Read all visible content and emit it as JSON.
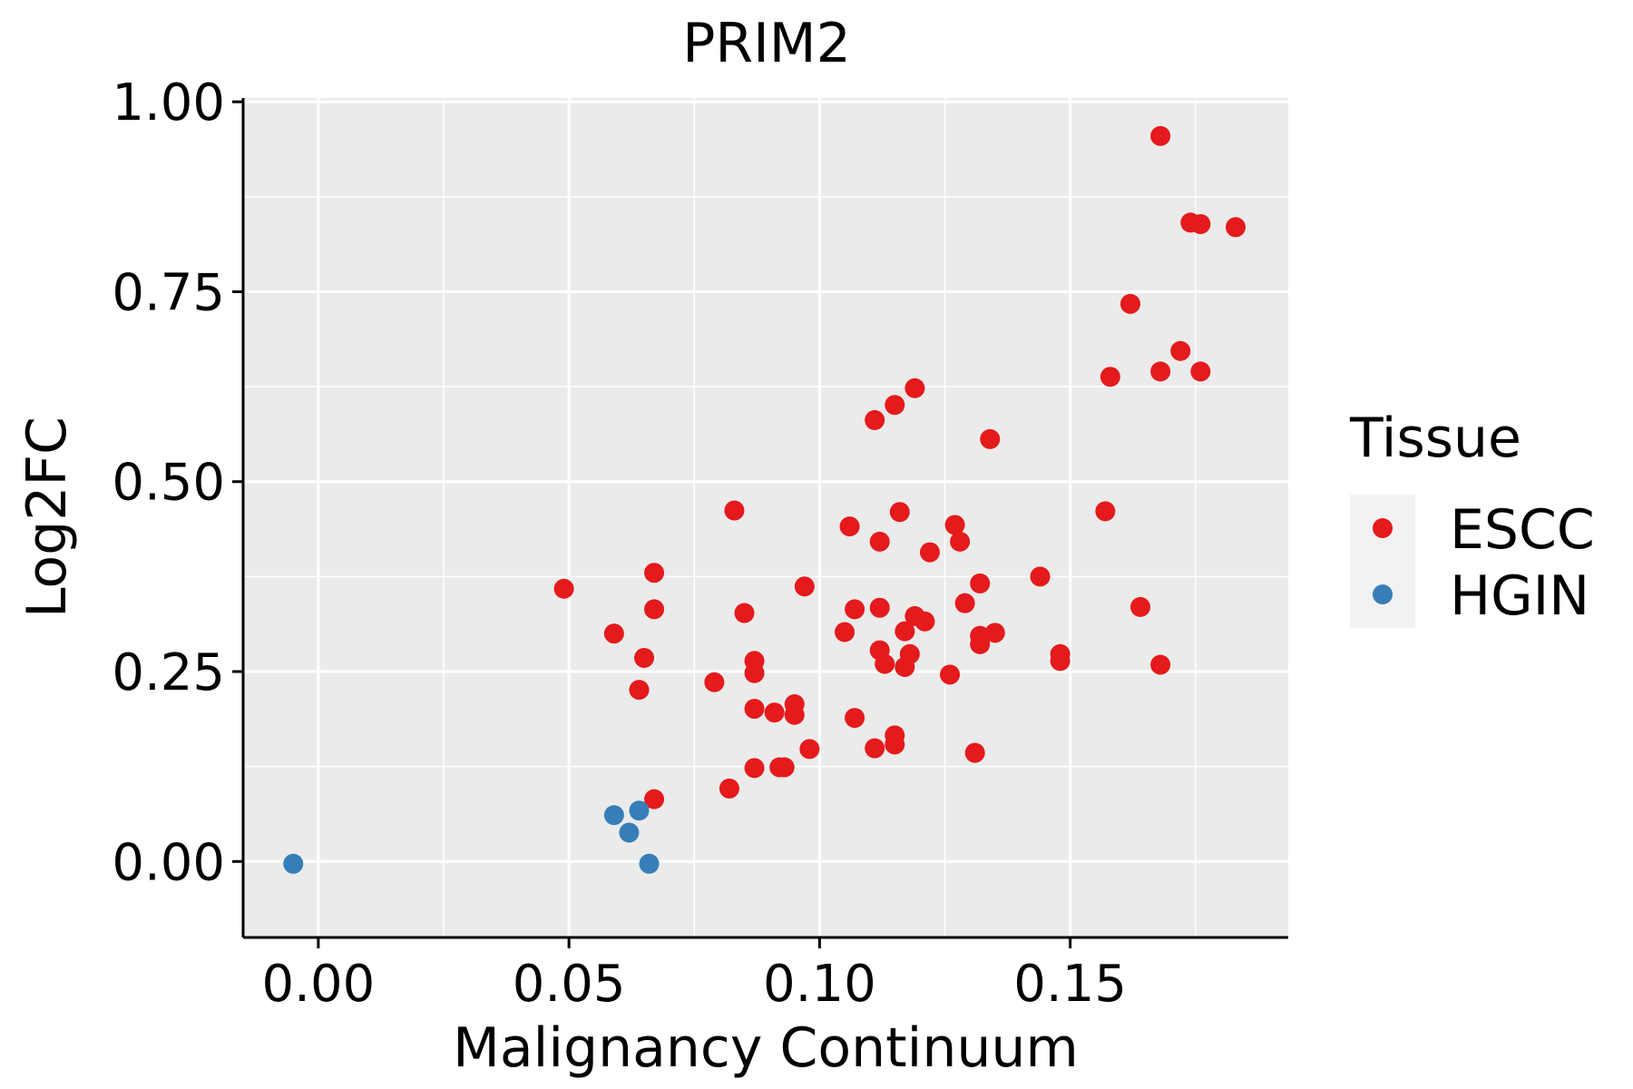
{
  "chart_data": {
    "type": "scatter",
    "title": "PRIM2",
    "xlabel": "Malignancy Continuum",
    "ylabel": "Log2FC",
    "xlim": [
      -0.015,
      0.1935
    ],
    "ylim": [
      -0.1,
      1.005
    ],
    "xticks": [
      "0.00",
      "0.05",
      "0.10",
      "0.15"
    ],
    "xtick_values": [
      0.0,
      0.05,
      0.1,
      0.15
    ],
    "yticks": [
      "0.00",
      "0.25",
      "0.50",
      "0.75",
      "1.00"
    ],
    "ytick_values": [
      0.0,
      0.25,
      0.5,
      0.75,
      1.0
    ],
    "grid": true,
    "panel_background": "#EBEBEB",
    "legend": {
      "title": "Tissue",
      "position": "right",
      "entries": [
        {
          "label": "ESCC",
          "color": "#E41A1C"
        },
        {
          "label": "HGIN",
          "color": "#377EB8"
        }
      ]
    },
    "series": [
      {
        "name": "ESCC",
        "color": "#E41A1C",
        "points": [
          [
            0.049,
            0.359
          ],
          [
            0.059,
            0.3
          ],
          [
            0.064,
            0.226
          ],
          [
            0.065,
            0.268
          ],
          [
            0.067,
            0.38
          ],
          [
            0.067,
            0.332
          ],
          [
            0.067,
            0.082
          ],
          [
            0.079,
            0.236
          ],
          [
            0.082,
            0.096
          ],
          [
            0.083,
            0.462
          ],
          [
            0.085,
            0.327
          ],
          [
            0.087,
            0.264
          ],
          [
            0.087,
            0.248
          ],
          [
            0.087,
            0.201
          ],
          [
            0.087,
            0.123
          ],
          [
            0.091,
            0.196
          ],
          [
            0.092,
            0.124
          ],
          [
            0.093,
            0.124
          ],
          [
            0.095,
            0.207
          ],
          [
            0.095,
            0.193
          ],
          [
            0.097,
            0.362
          ],
          [
            0.098,
            0.148
          ],
          [
            0.105,
            0.302
          ],
          [
            0.106,
            0.441
          ],
          [
            0.107,
            0.332
          ],
          [
            0.107,
            0.189
          ],
          [
            0.111,
            0.581
          ],
          [
            0.111,
            0.149
          ],
          [
            0.112,
            0.334
          ],
          [
            0.112,
            0.278
          ],
          [
            0.112,
            0.421
          ],
          [
            0.113,
            0.26
          ],
          [
            0.115,
            0.601
          ],
          [
            0.115,
            0.154
          ],
          [
            0.115,
            0.166
          ],
          [
            0.116,
            0.46
          ],
          [
            0.117,
            0.303
          ],
          [
            0.117,
            0.256
          ],
          [
            0.118,
            0.273
          ],
          [
            0.119,
            0.623
          ],
          [
            0.119,
            0.323
          ],
          [
            0.121,
            0.316
          ],
          [
            0.122,
            0.407
          ],
          [
            0.126,
            0.246
          ],
          [
            0.127,
            0.443
          ],
          [
            0.128,
            0.421
          ],
          [
            0.129,
            0.34
          ],
          [
            0.131,
            0.143
          ],
          [
            0.132,
            0.366
          ],
          [
            0.132,
            0.297
          ],
          [
            0.132,
            0.286
          ],
          [
            0.134,
            0.556
          ],
          [
            0.135,
            0.301
          ],
          [
            0.144,
            0.375
          ],
          [
            0.148,
            0.264
          ],
          [
            0.148,
            0.273
          ],
          [
            0.157,
            0.461
          ],
          [
            0.158,
            0.638
          ],
          [
            0.162,
            0.734
          ],
          [
            0.164,
            0.335
          ],
          [
            0.168,
            0.955
          ],
          [
            0.168,
            0.645
          ],
          [
            0.168,
            0.259
          ],
          [
            0.172,
            0.672
          ],
          [
            0.174,
            0.841
          ],
          [
            0.176,
            0.839
          ],
          [
            0.176,
            0.645
          ],
          [
            0.183,
            0.835
          ]
        ]
      },
      {
        "name": "HGIN",
        "color": "#377EB8",
        "points": [
          [
            -0.005,
            -0.003
          ],
          [
            0.059,
            0.061
          ],
          [
            0.062,
            0.038
          ],
          [
            0.064,
            0.067
          ],
          [
            0.066,
            -0.003
          ]
        ]
      }
    ]
  }
}
